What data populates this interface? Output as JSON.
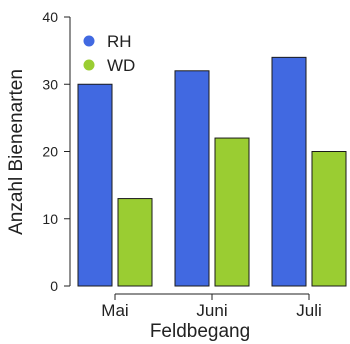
{
  "chart_data": {
    "type": "bar",
    "title": "",
    "xlabel": "Feldbegang",
    "ylabel": "Anzahl Bienenarten",
    "categories": [
      "Mai",
      "Juni",
      "Juli"
    ],
    "series": [
      {
        "name": "RH",
        "values": [
          30,
          32,
          34
        ],
        "color": "#4169e1"
      },
      {
        "name": "WD",
        "values": [
          13,
          22,
          20
        ],
        "color": "#9acd32"
      }
    ],
    "ylim": [
      0,
      40
    ],
    "yticks": [
      0,
      10,
      20,
      30,
      40
    ],
    "grid": false,
    "legend_position": "top-left"
  }
}
